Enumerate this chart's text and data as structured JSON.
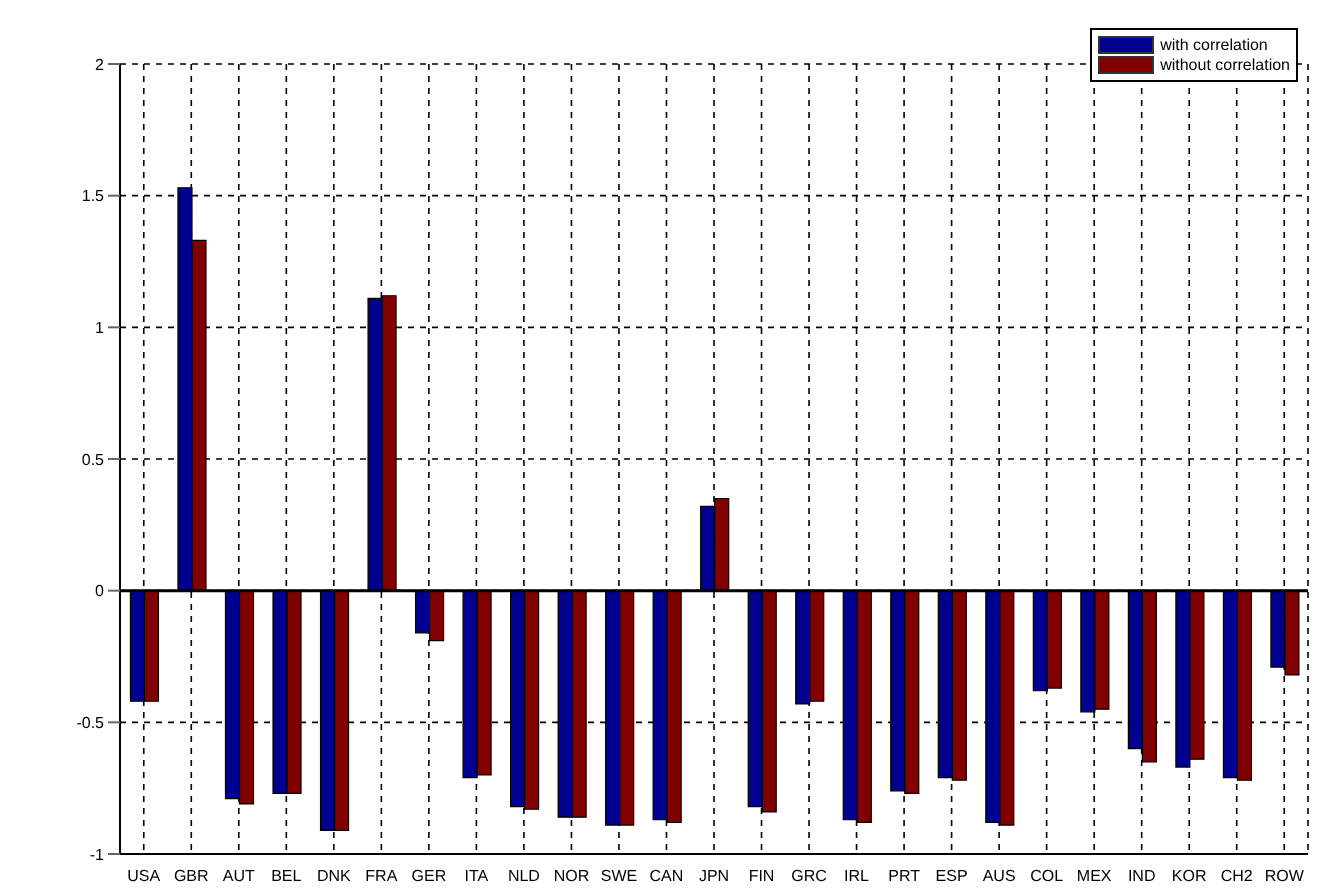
{
  "chart_data": {
    "type": "bar",
    "categories": [
      "USA",
      "GBR",
      "AUT",
      "BEL",
      "DNK",
      "FRA",
      "GER",
      "ITA",
      "NLD",
      "NOR",
      "SWE",
      "CAN",
      "JPN",
      "FIN",
      "GRC",
      "IRL",
      "PRT",
      "ESP",
      "AUS",
      "COL",
      "MEX",
      "IND",
      "KOR",
      "CH2",
      "ROW"
    ],
    "series": [
      {
        "name": "with correlation",
        "color": "#000090",
        "values": [
          -0.42,
          1.53,
          -0.79,
          -0.77,
          -0.91,
          1.11,
          -0.16,
          -0.71,
          -0.82,
          -0.86,
          -0.89,
          -0.87,
          0.32,
          -0.82,
          -0.43,
          -0.87,
          -0.76,
          -0.71,
          -0.88,
          -0.38,
          -0.46,
          -0.6,
          -0.67,
          -0.71,
          -0.29
        ]
      },
      {
        "name": "without correlation",
        "color": "#800000",
        "values": [
          -0.42,
          1.33,
          -0.81,
          -0.77,
          -0.91,
          1.12,
          -0.19,
          -0.7,
          -0.83,
          -0.86,
          -0.89,
          -0.88,
          0.35,
          -0.84,
          -0.42,
          -0.88,
          -0.77,
          -0.72,
          -0.89,
          -0.37,
          -0.45,
          -0.65,
          -0.64,
          -0.72,
          -0.32
        ]
      }
    ],
    "ylim": [
      -1,
      2
    ],
    "yticks": [
      -1,
      -0.5,
      0,
      0.5,
      1,
      1.5,
      2
    ],
    "grid": true,
    "legend": "top right"
  }
}
